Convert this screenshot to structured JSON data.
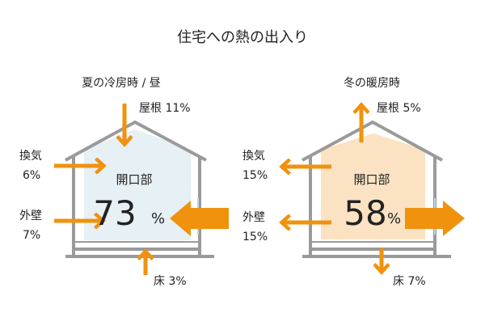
{
  "title": "住宅への熱の出入り",
  "colors": {
    "arrow": "#f0920e",
    "wall": "#999999",
    "summer_fill": "#e6f0f5",
    "winter_fill": "#fbe2c2"
  },
  "summer": {
    "heading": "夏の冷房時 / 昼",
    "roof": "屋根 11%",
    "vent_label": "換気",
    "vent_value": "6%",
    "wall_label": "外壁",
    "wall_value": "7%",
    "opening_label": "開口部",
    "opening_value": "73",
    "opening_unit": "%",
    "floor": "床 3%"
  },
  "winter": {
    "heading": "冬の暖房時",
    "roof": "屋根 5%",
    "vent_label": "換気",
    "vent_value": "15%",
    "wall_label": "外壁",
    "wall_value": "15%",
    "opening_label": "開口部",
    "opening_value": "58",
    "opening_unit": "%",
    "floor": "床 7%"
  }
}
